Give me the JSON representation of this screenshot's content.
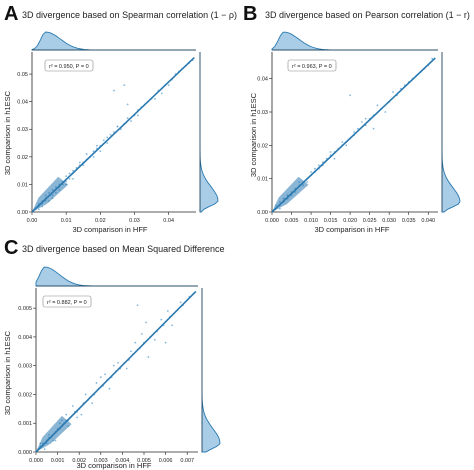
{
  "figure": {
    "colors": {
      "accent": "#2a79b0",
      "scatter": "#5b9fd0",
      "fill": "#a9cde6",
      "axis": "#222222",
      "text": "#222222",
      "box": "#888888"
    }
  },
  "chart_data": [
    {
      "type": "scatter",
      "panel_letter": "A",
      "title": "3D divergence based on Spearman correlation (1 − ρ)",
      "xlabel": "3D comparison in HFF",
      "ylabel": "3D comparison in h1ESC",
      "annotation": "r² = 0.950, P = 0",
      "xlim": [
        0,
        0.048
      ],
      "ylim": [
        0,
        0.058
      ],
      "xticks": [
        0.0,
        0.01,
        0.02,
        0.03,
        0.04
      ],
      "xtick_labels": [
        "0.00",
        "0.01",
        "0.02",
        "0.03",
        "0.04"
      ],
      "yticks": [
        0.0,
        0.01,
        0.02,
        0.03,
        0.04,
        0.05
      ],
      "ytick_labels": [
        "0.00",
        "0.01",
        "0.02",
        "0.03",
        "0.04",
        "0.05"
      ],
      "fit_line": {
        "x": [
          0,
          0.0475
        ],
        "y": [
          0,
          0.056
        ]
      },
      "marginals": {
        "x_peak": 0.004,
        "y_peak": 0.004
      },
      "points": {
        "x": [
          0.001,
          0.002,
          0.002,
          0.003,
          0.003,
          0.004,
          0.004,
          0.005,
          0.005,
          0.006,
          0.006,
          0.007,
          0.007,
          0.008,
          0.008,
          0.009,
          0.01,
          0.01,
          0.011,
          0.012,
          0.012,
          0.013,
          0.014,
          0.015,
          0.016,
          0.017,
          0.018,
          0.019,
          0.02,
          0.021,
          0.022,
          0.024,
          0.025,
          0.027,
          0.028,
          0.03,
          0.031,
          0.033,
          0.035,
          0.037,
          0.039,
          0.041,
          0.043,
          0.045,
          0.047,
          0.002,
          0.004,
          0.006,
          0.008,
          0.01,
          0.012,
          0.015,
          0.018,
          0.02,
          0.023,
          0.026,
          0.029,
          0.032,
          0.034,
          0.038,
          0.042,
          0.044,
          0.046,
          0.003,
          0.005,
          0.009,
          0.011,
          0.014,
          0.016,
          0.019,
          0.022,
          0.025,
          0.028,
          0.031,
          0.036,
          0.04,
          0.024,
          0.027
        ],
        "y": [
          0.001,
          0.003,
          0.002,
          0.004,
          0.003,
          0.005,
          0.006,
          0.006,
          0.004,
          0.008,
          0.006,
          0.009,
          0.007,
          0.01,
          0.008,
          0.011,
          0.013,
          0.01,
          0.014,
          0.015,
          0.012,
          0.016,
          0.017,
          0.018,
          0.019,
          0.02,
          0.022,
          0.023,
          0.024,
          0.026,
          0.027,
          0.029,
          0.031,
          0.032,
          0.034,
          0.035,
          0.037,
          0.039,
          0.041,
          0.044,
          0.046,
          0.048,
          0.051,
          0.053,
          0.055,
          0.001,
          0.004,
          0.005,
          0.009,
          0.011,
          0.014,
          0.017,
          0.02,
          0.022,
          0.028,
          0.03,
          0.033,
          0.038,
          0.04,
          0.043,
          0.05,
          0.052,
          0.054,
          0.002,
          0.007,
          0.01,
          0.012,
          0.018,
          0.021,
          0.024,
          0.025,
          0.031,
          0.039,
          0.035,
          0.041,
          0.046,
          0.044,
          0.046
        ]
      }
    },
    {
      "type": "scatter",
      "panel_letter": "B",
      "title": "3D divergence based on Pearson correlation (1 − r)",
      "xlabel": "3D comparison in HFF",
      "ylabel": "3D comparison in h1ESC",
      "annotation": "r² = 0.963, P = 0",
      "xlim": [
        0,
        0.0425
      ],
      "ylim": [
        0,
        0.048
      ],
      "xticks": [
        0.0,
        0.005,
        0.01,
        0.015,
        0.02,
        0.025,
        0.03,
        0.035,
        0.04
      ],
      "xtick_labels": [
        "0.000",
        "0.005",
        "0.010",
        "0.015",
        "0.020",
        "0.025",
        "0.030",
        "0.035",
        "0.040"
      ],
      "yticks": [
        0.0,
        0.01,
        0.02,
        0.03,
        0.04
      ],
      "ytick_labels": [
        "0.00",
        "0.01",
        "0.02",
        "0.03",
        "0.04"
      ],
      "fit_line": {
        "x": [
          0,
          0.0418
        ],
        "y": [
          0,
          0.0462
        ]
      },
      "marginals": {
        "x_peak": 0.003,
        "y_peak": 0.003
      },
      "points": {
        "x": [
          0.001,
          0.001,
          0.002,
          0.002,
          0.003,
          0.003,
          0.004,
          0.004,
          0.005,
          0.005,
          0.006,
          0.006,
          0.007,
          0.008,
          0.008,
          0.009,
          0.01,
          0.011,
          0.012,
          0.013,
          0.014,
          0.015,
          0.016,
          0.017,
          0.018,
          0.019,
          0.02,
          0.021,
          0.022,
          0.024,
          0.025,
          0.026,
          0.028,
          0.03,
          0.032,
          0.034,
          0.036,
          0.038,
          0.04,
          0.041,
          0.002,
          0.004,
          0.006,
          0.009,
          0.011,
          0.013,
          0.016,
          0.019,
          0.021,
          0.023,
          0.027,
          0.029,
          0.031,
          0.035,
          0.037,
          0.039,
          0.003,
          0.007,
          0.01,
          0.012,
          0.015,
          0.018,
          0.02,
          0.024,
          0.026,
          0.033
        ],
        "y": [
          0.001,
          0.002,
          0.002,
          0.003,
          0.003,
          0.004,
          0.005,
          0.004,
          0.006,
          0.005,
          0.007,
          0.006,
          0.008,
          0.009,
          0.008,
          0.01,
          0.011,
          0.012,
          0.013,
          0.014,
          0.016,
          0.017,
          0.018,
          0.019,
          0.02,
          0.021,
          0.022,
          0.023,
          0.025,
          0.026,
          0.028,
          0.029,
          0.031,
          0.033,
          0.035,
          0.038,
          0.04,
          0.042,
          0.044,
          0.046,
          0.001,
          0.005,
          0.007,
          0.009,
          0.013,
          0.015,
          0.016,
          0.02,
          0.024,
          0.027,
          0.032,
          0.03,
          0.036,
          0.039,
          0.041,
          0.043,
          0.004,
          0.009,
          0.012,
          0.014,
          0.018,
          0.021,
          0.035,
          0.028,
          0.025,
          0.037
        ]
      }
    },
    {
      "type": "scatter",
      "panel_letter": "C",
      "title": "3D divergence based on Mean Squared Difference",
      "xlabel": "3D comparison in HFF",
      "ylabel": "3D comparison in h1ESC",
      "annotation": "r² = 0.882, P = 0",
      "xlim": [
        0,
        0.0075
      ],
      "ylim": [
        0,
        0.0057
      ],
      "xticks": [
        0.0,
        0.001,
        0.002,
        0.003,
        0.004,
        0.005,
        0.006,
        0.007
      ],
      "xtick_labels": [
        "0.000",
        "0.001",
        "0.002",
        "0.003",
        "0.004",
        "0.005",
        "0.006",
        "0.007"
      ],
      "yticks": [
        0.0,
        0.001,
        0.002,
        0.003,
        0.004,
        0.005
      ],
      "ytick_labels": [
        "0.000",
        "0.001",
        "0.002",
        "0.003",
        "0.004",
        "0.005"
      ],
      "fit_line": {
        "x": [
          0,
          0.0074
        ],
        "y": [
          0,
          0.00558
        ]
      },
      "marginals": {
        "x_peak": 0.0004,
        "y_peak": 0.0003
      },
      "points": {
        "x": [
          0.0001,
          0.0002,
          0.0003,
          0.0003,
          0.0004,
          0.0005,
          0.0005,
          0.0006,
          0.0007,
          0.0008,
          0.0009,
          0.001,
          0.0011,
          0.0012,
          0.0013,
          0.0014,
          0.0015,
          0.0016,
          0.0018,
          0.0019,
          0.002,
          0.0022,
          0.0024,
          0.0025,
          0.0027,
          0.0029,
          0.0031,
          0.0033,
          0.0035,
          0.0037,
          0.0039,
          0.0041,
          0.0043,
          0.0045,
          0.0048,
          0.005,
          0.0053,
          0.0056,
          0.0059,
          0.0062,
          0.0065,
          0.0068,
          0.0071,
          0.0073,
          0.0004,
          0.0006,
          0.0009,
          0.0012,
          0.0015,
          0.0017,
          0.0021,
          0.0023,
          0.0026,
          0.003,
          0.0034,
          0.0038,
          0.0042,
          0.0046,
          0.0052,
          0.0058,
          0.0063,
          0.0067,
          0.0002,
          0.0008,
          0.0011,
          0.0014,
          0.0019,
          0.0028,
          0.0032,
          0.0036,
          0.0044,
          0.0049,
          0.0055,
          0.0061,
          0.0047,
          0.006,
          0.0051
        ],
        "y": [
          0.0001,
          0.0002,
          0.0002,
          0.0003,
          0.0003,
          0.0004,
          0.0003,
          0.0005,
          0.0005,
          0.0006,
          0.0007,
          0.0008,
          0.0008,
          0.0009,
          0.001,
          0.0011,
          0.0011,
          0.0012,
          0.0014,
          0.0014,
          0.0015,
          0.0017,
          0.0018,
          0.0019,
          0.002,
          0.0022,
          0.0023,
          0.0025,
          0.0026,
          0.0028,
          0.0029,
          0.0031,
          0.0032,
          0.0034,
          0.0036,
          0.0038,
          0.004,
          0.0042,
          0.0044,
          0.0047,
          0.0049,
          0.0051,
          0.0054,
          0.0055,
          0.0001,
          0.0006,
          0.0004,
          0.0011,
          0.0009,
          0.0016,
          0.0013,
          0.002,
          0.0017,
          0.0026,
          0.0022,
          0.0031,
          0.0029,
          0.0038,
          0.0033,
          0.0046,
          0.0044,
          0.0052,
          0.0003,
          0.0004,
          0.001,
          0.0013,
          0.0012,
          0.0024,
          0.0027,
          0.003,
          0.0035,
          0.0041,
          0.0039,
          0.0049,
          0.0051,
          0.0038,
          0.0045
        ]
      }
    }
  ]
}
